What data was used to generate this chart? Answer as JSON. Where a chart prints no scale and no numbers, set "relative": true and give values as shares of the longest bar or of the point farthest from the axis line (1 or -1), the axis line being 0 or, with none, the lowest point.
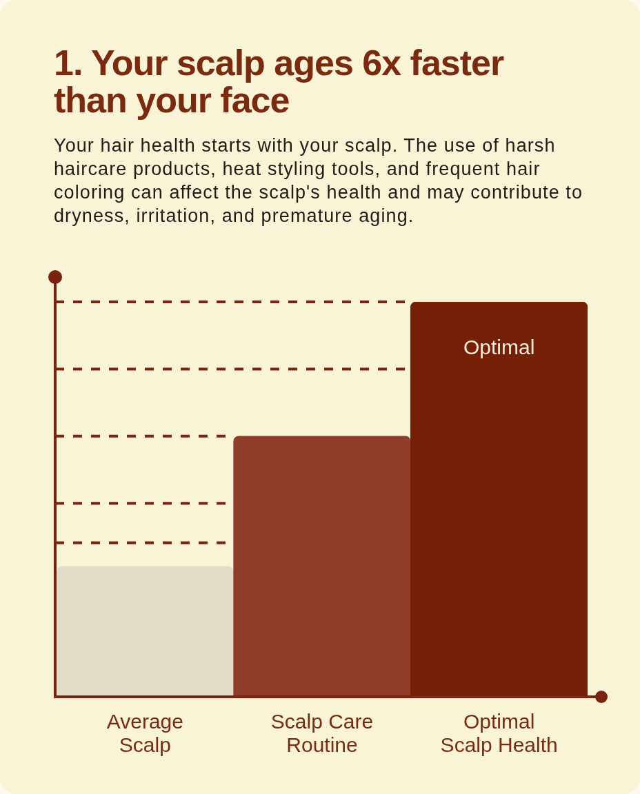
{
  "chart_data": {
    "type": "bar",
    "title": "1. Your scalp ages 6x faster than your face",
    "subtitle": "Your hair health starts with your scalp. The use of harsh haircare products, heat styling tools, and frequent hair coloring can affect the scalp's health and may contribute to dryness, irritation, and premature aging.",
    "categories": [
      "Average Scalp",
      "Scalp Care Routine",
      "Optimal Scalp Health"
    ],
    "values": [
      0.33,
      0.66,
      1
    ],
    "colors": [
      "#e3dcc6",
      "#8e3d28",
      "#761f07"
    ],
    "relative": true,
    "ref_lines": [
      {
        "axis": "y",
        "value": 1,
        "color": "#7a2410",
        "line_style": "dashed"
      },
      {
        "axis": "y",
        "value": 0.83,
        "color": "#7a2410",
        "line_style": "dashed"
      },
      {
        "axis": "y",
        "value": 0.66,
        "color": "#7a2410",
        "line_style": "dashed"
      },
      {
        "axis": "y",
        "value": 0.49,
        "color": "#7a2410",
        "line_style": "dashed"
      },
      {
        "axis": "y",
        "value": 0.39,
        "color": "#7a2410",
        "line_style": "dashed"
      }
    ],
    "annotations": [
      "Optimal"
    ]
  }
}
